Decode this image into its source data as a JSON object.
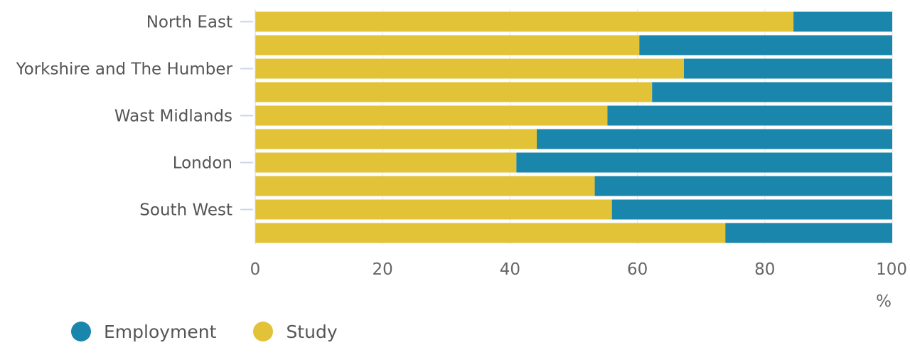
{
  "chart_data": {
    "type": "bar",
    "orientation": "horizontal",
    "stacked": true,
    "categories": [
      "North East",
      "",
      "Yorkshire and The Humber",
      "",
      "Wast Midlands",
      "",
      "London",
      "",
      "South West",
      ""
    ],
    "series": [
      {
        "name": "Study",
        "color": "#e2c237",
        "values": [
          84.5,
          60.3,
          67.3,
          62.3,
          55.3,
          44.2,
          41.0,
          53.3,
          56.0,
          73.8
        ]
      },
      {
        "name": "Employment",
        "color": "#1a86ab",
        "values": [
          15.5,
          39.7,
          32.7,
          37.7,
          44.7,
          55.8,
          59.0,
          46.7,
          44.0,
          26.2
        ]
      }
    ],
    "xlim": [
      0,
      100
    ],
    "xticks": [
      "0",
      "20",
      "40",
      "60",
      "80",
      "100"
    ],
    "xunit": "%",
    "grid": true,
    "legend_position": "bottom-left"
  },
  "legend": {
    "items": [
      {
        "label": "Employment",
        "color": "#1a86ab"
      },
      {
        "label": "Study",
        "color": "#e2c237"
      }
    ]
  }
}
